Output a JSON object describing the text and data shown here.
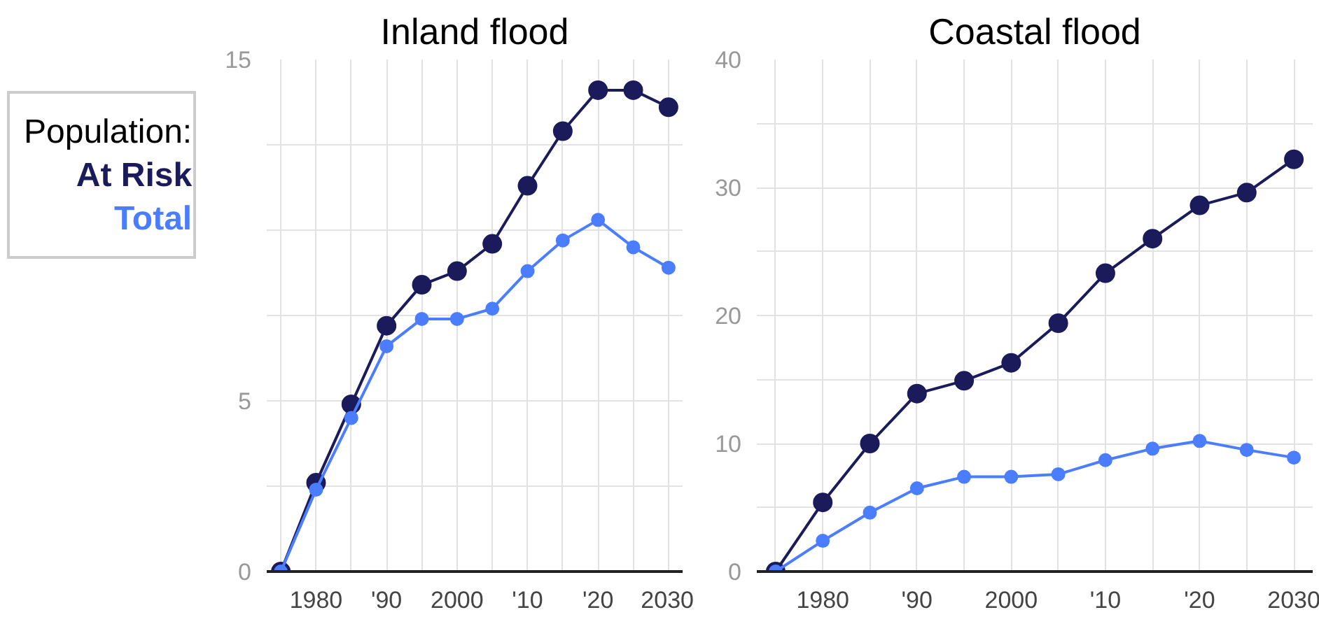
{
  "chart_data": [
    {
      "type": "line",
      "title": "Inland flood",
      "legend_title": "Population:",
      "legend": "left",
      "marker": "circle",
      "grid": true,
      "x": [
        1975,
        1980,
        1985,
        1990,
        1995,
        2000,
        2005,
        2010,
        2015,
        2020,
        2025,
        2030
      ],
      "xlim": [
        1973,
        2032
      ],
      "xticks": [
        {
          "value": 1975,
          "label": null
        },
        1980,
        {
          "value": 1985,
          "label": null
        },
        {
          "value": 1990,
          "label": "'90"
        },
        {
          "value": 1995,
          "label": null
        },
        2000,
        {
          "value": 2005,
          "label": null
        },
        {
          "value": 2010,
          "label": "'10"
        },
        {
          "value": 2015,
          "label": null
        },
        {
          "value": 2020,
          "label": "'20"
        },
        {
          "value": 2025,
          "label": null
        },
        2030
      ],
      "ylim": [
        0,
        15
      ],
      "yticks": [
        0,
        {
          "value": 2.5,
          "label": null
        },
        5,
        {
          "value": 7.5,
          "label": null
        },
        {
          "value": 10,
          "label": null
        },
        {
          "value": 12.5,
          "label": null
        },
        15
      ],
      "series": [
        {
          "name": "At Risk",
          "color": "#1b1b5c",
          "values": [
            0,
            2.6,
            4.9,
            7.2,
            8.4,
            8.8,
            9.6,
            11.3,
            12.9,
            14.1,
            14.1,
            13.6
          ]
        },
        {
          "name": "Total",
          "color": "#4a7dff",
          "values": [
            0,
            2.4,
            4.5,
            6.6,
            7.4,
            7.4,
            7.7,
            8.8,
            9.7,
            10.3,
            9.5,
            8.9
          ]
        }
      ]
    },
    {
      "type": "line",
      "title": "Coastal flood",
      "marker": "circle",
      "grid": true,
      "x": [
        1975,
        1980,
        1985,
        1990,
        1995,
        2000,
        2005,
        2010,
        2015,
        2020,
        2025,
        2030
      ],
      "xlim": [
        1973,
        2032
      ],
      "xticks": [
        {
          "value": 1975,
          "label": null
        },
        1980,
        {
          "value": 1985,
          "label": null
        },
        {
          "value": 1990,
          "label": "'90"
        },
        {
          "value": 1995,
          "label": null
        },
        2000,
        {
          "value": 2005,
          "label": null
        },
        {
          "value": 2010,
          "label": "'10"
        },
        {
          "value": 2015,
          "label": null
        },
        {
          "value": 2020,
          "label": "'20"
        },
        {
          "value": 2025,
          "label": null
        },
        2030
      ],
      "ylim": [
        0,
        40
      ],
      "yticks": [
        0,
        {
          "value": 5,
          "label": null
        },
        10,
        {
          "value": 15,
          "label": null
        },
        20,
        {
          "value": 25,
          "label": null
        },
        30,
        {
          "value": 35,
          "label": null
        },
        40
      ],
      "series": [
        {
          "color": "#1b1b5c",
          "values": [
            0,
            5.4,
            10,
            13.9,
            14.9,
            16.3,
            19.4,
            23.3,
            26,
            28.6,
            29.6,
            32.2
          ]
        },
        {
          "color": "#4a7dff",
          "values": [
            0,
            2.4,
            4.6,
            6.5,
            7.4,
            7.4,
            7.6,
            8.7,
            9.6,
            10.2,
            9.5,
            8.9
          ]
        }
      ]
    }
  ]
}
